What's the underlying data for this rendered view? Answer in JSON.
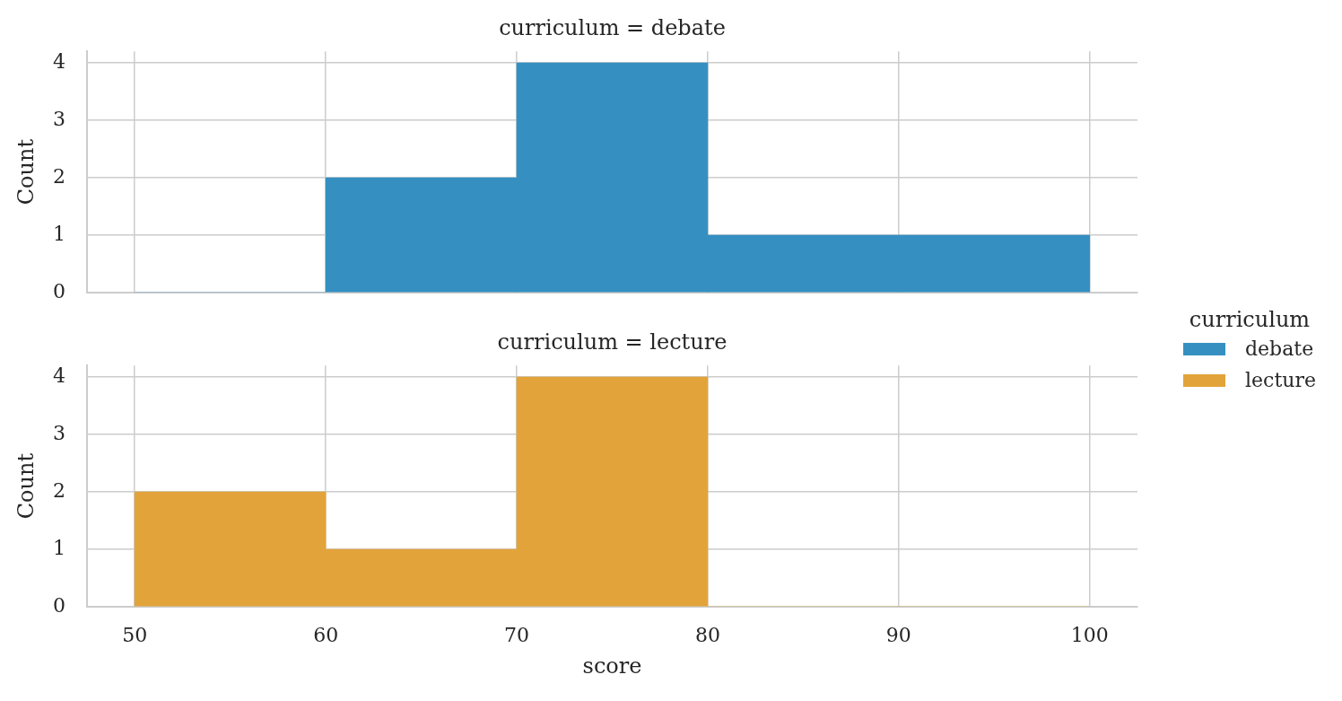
{
  "chart_data": [
    {
      "type": "histogram",
      "title": "curriculum = debate",
      "ylabel": "Count",
      "bins": [
        50,
        60,
        70,
        80,
        90,
        100
      ],
      "series": [
        {
          "name": "debate",
          "color": "#3590c1",
          "values": [
            0,
            2,
            4,
            1,
            1
          ]
        }
      ],
      "xlim": [
        47.5,
        102.5
      ],
      "xticks": [
        50,
        60,
        70,
        80,
        90,
        100
      ],
      "ylim": [
        0,
        4.2
      ],
      "yticks": [
        0,
        1,
        2,
        3,
        4
      ],
      "tick_labels": "y",
      "grid": true,
      "legend": "right",
      "legend_title": "curriculum"
    },
    {
      "type": "histogram",
      "title": "curriculum = lecture",
      "xlabel": "score",
      "ylabel": "Count",
      "bins": [
        50,
        60,
        70,
        80,
        90,
        100
      ],
      "series": [
        {
          "name": "lecture",
          "color": "#e2a43a",
          "values": [
            2,
            1,
            4,
            0,
            0
          ]
        }
      ],
      "xlim": [
        47.5,
        102.5
      ],
      "xticks": [
        50,
        60,
        70,
        80,
        90,
        100
      ],
      "ylim": [
        0,
        4.2
      ],
      "yticks": [
        0,
        1,
        2,
        3,
        4
      ],
      "grid": true,
      "legend": "right"
    }
  ]
}
